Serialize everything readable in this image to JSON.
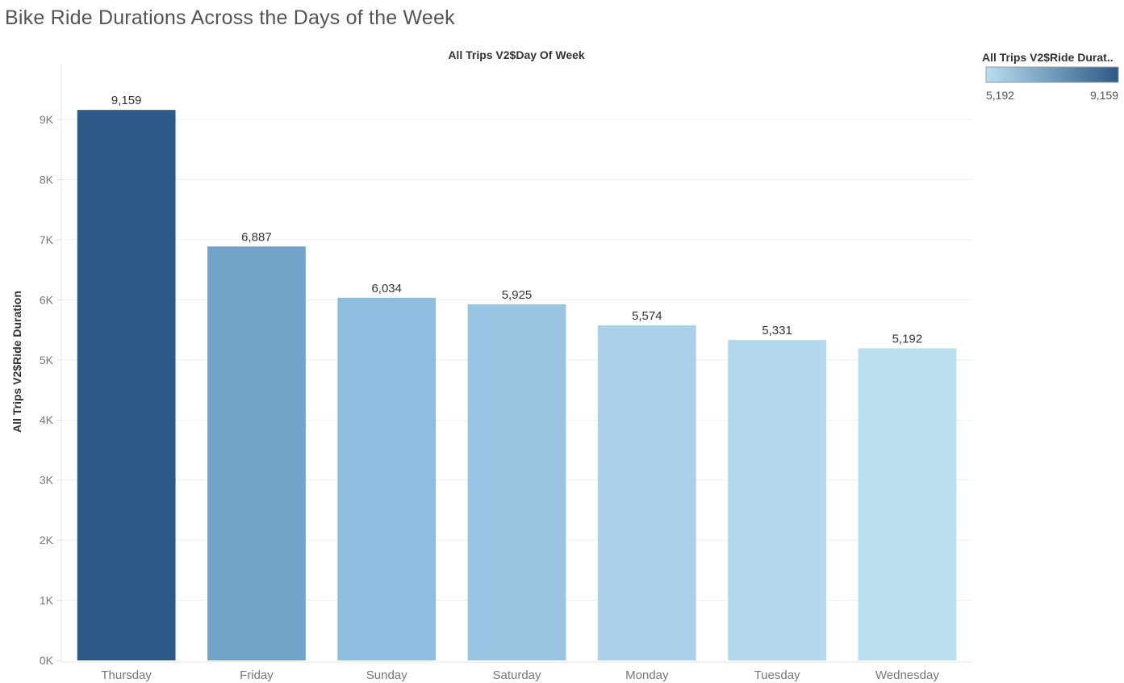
{
  "page": {
    "title": "Bike Ride Durations Across the Days of the Week"
  },
  "chart_data": {
    "type": "bar",
    "column_header": "All Trips V2$Day Of Week",
    "ylabel": "All Trips V2$Ride Duration",
    "categories": [
      "Thursday",
      "Friday",
      "Sunday",
      "Saturday",
      "Monday",
      "Tuesday",
      "Wednesday"
    ],
    "values": [
      9159,
      6887,
      6034,
      5925,
      5574,
      5331,
      5192
    ],
    "data_labels": [
      "9,159",
      "6,887",
      "6,034",
      "5,925",
      "5,574",
      "5,331",
      "5,192"
    ],
    "colors": [
      "#2c5985",
      "#72a4ca",
      "#8fbde0",
      "#99c4e2",
      "#a9d0e8",
      "#b3d8ec",
      "#b9def0"
    ],
    "ylim": [
      0,
      9000
    ],
    "y_ticks": [
      0,
      1000,
      2000,
      3000,
      4000,
      5000,
      6000,
      7000,
      8000,
      9000
    ],
    "y_tick_labels": [
      "0K",
      "1K",
      "2K",
      "3K",
      "4K",
      "5K",
      "6K",
      "7K",
      "8K",
      "9K"
    ],
    "grid": true,
    "legend": {
      "title": "All Trips V2$Ride Durat..",
      "min_label": "5,192",
      "max_label": "9,159",
      "color_low": "#b9def0",
      "color_high": "#2c5985",
      "placement": "top-right"
    }
  }
}
